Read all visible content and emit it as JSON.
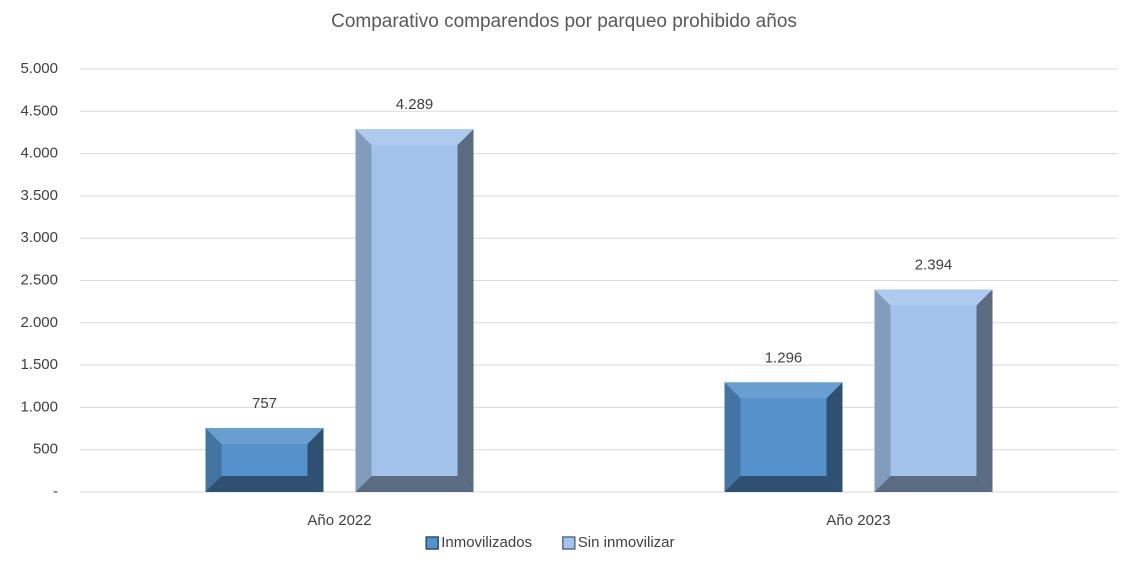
{
  "chart_data": {
    "type": "bar",
    "title": "Comparativo  comparendos por parqueo prohibido años",
    "categories": [
      "Año 2022",
      "Año 2023"
    ],
    "series": [
      {
        "name": "Inmovilizados",
        "color": "#5591cb",
        "values": [
          757,
          1296
        ],
        "value_labels": [
          "757",
          "1.296"
        ]
      },
      {
        "name": "Sin inmovilizar",
        "color": "#a3c3ec",
        "values": [
          4289,
          2394
        ],
        "value_labels": [
          "4.289",
          "2.394"
        ]
      }
    ],
    "ylim": [
      0,
      5000
    ],
    "yticks": [
      {
        "value": 0,
        "label": "-"
      },
      500,
      {
        "value": 1000,
        "label": "1.000"
      },
      {
        "value": 1500,
        "label": "1.500"
      },
      {
        "value": 2000,
        "label": "2.000"
      },
      {
        "value": 2500,
        "label": "2.500"
      },
      {
        "value": 3000,
        "label": "3.000"
      },
      {
        "value": 3500,
        "label": "3.500"
      },
      {
        "value": 4000,
        "label": "4.000"
      },
      {
        "value": 4500,
        "label": "4.500"
      },
      {
        "value": 5000,
        "label": "5.000"
      }
    ],
    "grid": true,
    "legend": "bottom"
  }
}
